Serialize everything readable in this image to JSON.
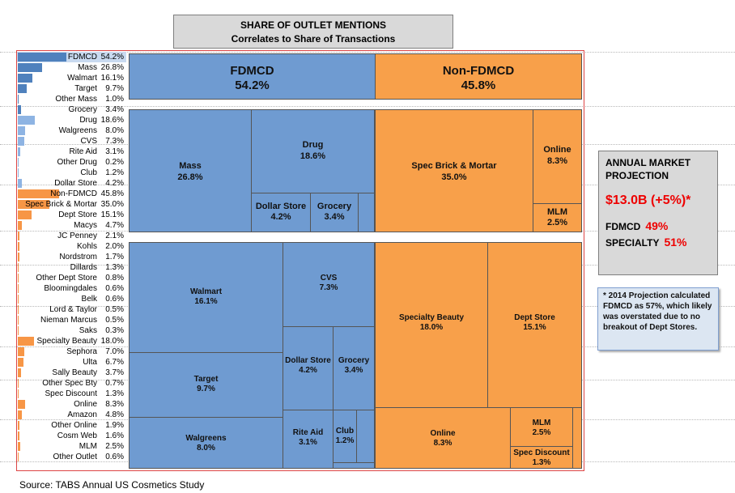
{
  "header": {
    "line1": "SHARE OF OUTLET MENTIONS",
    "line2": "Correlates to Share of Transactions"
  },
  "chart_data": {
    "type": "table",
    "series": [
      {
        "label": "FDMCD",
        "value": "54.2%",
        "num": 54.2,
        "color": "#4f81bd",
        "selected": true
      },
      {
        "label": "Mass",
        "value": "26.8%",
        "num": 26.8,
        "color": "#4f81bd"
      },
      {
        "label": "Walmart",
        "value": "16.1%",
        "num": 16.1,
        "color": "#4f81bd"
      },
      {
        "label": "Target",
        "value": "9.7%",
        "num": 9.7,
        "color": "#4f81bd"
      },
      {
        "label": "Other Mass",
        "value": "1.0%",
        "num": 1.0,
        "color": "#4f81bd"
      },
      {
        "label": "Grocery",
        "value": "3.4%",
        "num": 3.4,
        "color": "#4f81bd"
      },
      {
        "label": "Drug",
        "value": "18.6%",
        "num": 18.6,
        "color": "#8eb4e3"
      },
      {
        "label": "Walgreens",
        "value": "8.0%",
        "num": 8.0,
        "color": "#8eb4e3"
      },
      {
        "label": "CVS",
        "value": "7.3%",
        "num": 7.3,
        "color": "#8eb4e3"
      },
      {
        "label": "Rite Aid",
        "value": "3.1%",
        "num": 3.1,
        "color": "#8eb4e3"
      },
      {
        "label": "Other Drug",
        "value": "0.2%",
        "num": 0.2,
        "color": "#8eb4e3"
      },
      {
        "label": "Club",
        "value": "1.2%",
        "num": 1.2,
        "color": "#8eb4e3"
      },
      {
        "label": "Dollar Store",
        "value": "4.2%",
        "num": 4.2,
        "color": "#8eb4e3"
      },
      {
        "label": "Non-FDMCD",
        "value": "45.8%",
        "num": 45.8,
        "color": "#f79646"
      },
      {
        "label": "Spec Brick & Mortar",
        "value": "35.0%",
        "num": 35.0,
        "color": "#f79646"
      },
      {
        "label": "Dept Store",
        "value": "15.1%",
        "num": 15.1,
        "color": "#f79646"
      },
      {
        "label": "Macys",
        "value": "4.7%",
        "num": 4.7,
        "color": "#f79646"
      },
      {
        "label": "JC Penney",
        "value": "2.1%",
        "num": 2.1,
        "color": "#f79646"
      },
      {
        "label": "Kohls",
        "value": "2.0%",
        "num": 2.0,
        "color": "#f79646"
      },
      {
        "label": "Nordstrom",
        "value": "1.7%",
        "num": 1.7,
        "color": "#f79646"
      },
      {
        "label": "Dillards",
        "value": "1.3%",
        "num": 1.3,
        "color": "#f79646"
      },
      {
        "label": "Other Dept Store",
        "value": "0.8%",
        "num": 0.8,
        "color": "#f79646"
      },
      {
        "label": "Bloomingdales",
        "value": "0.6%",
        "num": 0.6,
        "color": "#f79646"
      },
      {
        "label": "Belk",
        "value": "0.6%",
        "num": 0.6,
        "color": "#f79646"
      },
      {
        "label": "Lord & Taylor",
        "value": "0.5%",
        "num": 0.5,
        "color": "#f79646"
      },
      {
        "label": "Nieman Marcus",
        "value": "0.5%",
        "num": 0.5,
        "color": "#f79646"
      },
      {
        "label": "Saks",
        "value": "0.3%",
        "num": 0.3,
        "color": "#f79646"
      },
      {
        "label": "Specialty Beauty",
        "value": "18.0%",
        "num": 18.0,
        "color": "#f79646"
      },
      {
        "label": "Sephora",
        "value": "7.0%",
        "num": 7.0,
        "color": "#f79646"
      },
      {
        "label": "Ulta",
        "value": "6.7%",
        "num": 6.7,
        "color": "#f79646"
      },
      {
        "label": "Sally Beauty",
        "value": "3.7%",
        "num": 3.7,
        "color": "#f79646"
      },
      {
        "label": "Other Spec Bty",
        "value": "0.7%",
        "num": 0.7,
        "color": "#f79646"
      },
      {
        "label": "Spec Discount",
        "value": "1.3%",
        "num": 1.3,
        "color": "#f79646"
      },
      {
        "label": "Online",
        "value": "8.3%",
        "num": 8.3,
        "color": "#f79646"
      },
      {
        "label": "Amazon",
        "value": "4.8%",
        "num": 4.8,
        "color": "#f79646"
      },
      {
        "label": "Other Online",
        "value": "1.9%",
        "num": 1.9,
        "color": "#f79646"
      },
      {
        "label": "Cosm Web",
        "value": "1.6%",
        "num": 1.6,
        "color": "#f79646"
      },
      {
        "label": "MLM",
        "value": "2.5%",
        "num": 2.5,
        "color": "#f79646"
      },
      {
        "label": "Other Outlet",
        "value": "0.6%",
        "num": 0.6,
        "color": "#f79646"
      }
    ],
    "treemap": {
      "top": [
        {
          "name": "FDMCD",
          "value": "54.2%",
          "color": "blue"
        },
        {
          "name": "Non-FDMCD",
          "value": "45.8%",
          "color": "orange"
        }
      ],
      "middle": [
        {
          "name": "Mass",
          "value": "26.8%",
          "color": "blue"
        },
        {
          "name": "Drug",
          "value": "18.6%",
          "color": "blue"
        },
        {
          "name": "Dollar Store",
          "value": "4.2%",
          "color": "blue"
        },
        {
          "name": "Grocery",
          "value": "3.4%",
          "color": "blue"
        },
        {
          "name": "Spec Brick & Mortar",
          "value": "35.0%",
          "color": "orange"
        },
        {
          "name": "Online",
          "value": "8.3%",
          "color": "orange"
        },
        {
          "name": "MLM",
          "value": "2.5%",
          "color": "orange"
        }
      ],
      "bottom": [
        {
          "name": "Walmart",
          "value": "16.1%",
          "color": "blue"
        },
        {
          "name": "Target",
          "value": "9.7%",
          "color": "blue"
        },
        {
          "name": "Walgreens",
          "value": "8.0%",
          "color": "blue"
        },
        {
          "name": "CVS",
          "value": "7.3%",
          "color": "blue"
        },
        {
          "name": "Dollar Store",
          "value": "4.2%",
          "color": "blue"
        },
        {
          "name": "Grocery",
          "value": "3.4%",
          "color": "blue"
        },
        {
          "name": "Rite Aid",
          "value": "3.1%",
          "color": "blue"
        },
        {
          "name": "Club",
          "value": "1.2%",
          "color": "blue"
        },
        {
          "name": "Specialty Beauty",
          "value": "18.0%",
          "color": "orange"
        },
        {
          "name": "Dept Store",
          "value": "15.1%",
          "color": "orange"
        },
        {
          "name": "Online",
          "value": "8.3%",
          "color": "orange"
        },
        {
          "name": "MLM",
          "value": "2.5%",
          "color": "orange"
        },
        {
          "name": "Spec Discount",
          "value": "1.3%",
          "color": "orange"
        }
      ]
    }
  },
  "projection": {
    "title_line1": "ANNUAL MARKET",
    "title_line2": "PROJECTION",
    "amount": "$13.0B (+5%)*",
    "fdmcd_label": "FDMCD",
    "fdmcd_pct": "49%",
    "specialty_label": "SPECIALTY",
    "specialty_pct": "51%"
  },
  "note": "* 2014 Projection calculated FDMCD as 57%, which likely was overstated due to no breakout of Dept Stores.",
  "source": "Source: TABS Annual US Cosmetics Study",
  "colors": {
    "blue": "#6f9bd1",
    "orange": "#f8a04a",
    "red": "#e00000"
  }
}
